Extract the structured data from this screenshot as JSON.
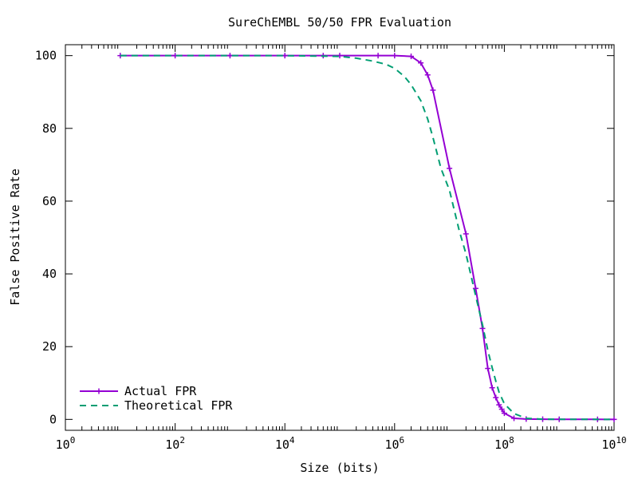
{
  "chart_data": {
    "type": "line",
    "title": "SureChEMBL 50/50 FPR Evaluation",
    "xlabel": "Size (bits)",
    "ylabel": "False Positive Rate",
    "x_scale": "log10",
    "xlim": [
      1,
      10000000000
    ],
    "ylim": [
      -3,
      103
    ],
    "x_ticks": [
      {
        "value": 1,
        "base": "10",
        "exp": "0"
      },
      {
        "value": 100,
        "base": "10",
        "exp": "2"
      },
      {
        "value": 10000,
        "base": "10",
        "exp": "4"
      },
      {
        "value": 1000000,
        "base": "10",
        "exp": "6"
      },
      {
        "value": 100000000,
        "base": "10",
        "exp": "8"
      },
      {
        "value": 10000000000,
        "base": "10",
        "exp": "10"
      }
    ],
    "y_ticks": [
      {
        "value": 0,
        "label": "0"
      },
      {
        "value": 20,
        "label": "20"
      },
      {
        "value": 40,
        "label": "40"
      },
      {
        "value": 60,
        "label": "60"
      },
      {
        "value": 80,
        "label": "80"
      },
      {
        "value": 100,
        "label": "100"
      }
    ],
    "grid": false,
    "legend_position": "bottom-left",
    "series": [
      {
        "name": "Actual FPR",
        "color": "#9400d3",
        "style": "solid-with-markers",
        "x": [
          10,
          100,
          1000,
          10000,
          50000,
          100000,
          500000,
          1000000,
          2000000,
          3000000,
          4000000,
          5000000,
          10000000,
          20000000,
          30000000,
          40000000,
          50000000,
          60000000,
          70000000,
          80000000,
          90000000,
          100000000,
          150000000,
          250000000,
          500000000,
          1000000000,
          5000000000,
          10000000000
        ],
        "y": [
          100,
          100,
          100,
          100,
          100,
          100,
          100,
          100,
          99.8,
          98,
          94.7,
          90.5,
          69,
          51,
          36,
          25,
          14,
          8.7,
          6,
          4,
          2.8,
          1.7,
          0.3,
          0.1,
          0.05,
          0.03,
          0.01,
          0
        ]
      },
      {
        "name": "Theoretical FPR",
        "color": "#009e73",
        "style": "dashed",
        "x": [
          10,
          100,
          1000,
          10000,
          100000,
          200000,
          400000,
          700000,
          1000000,
          1500000,
          2000000,
          3000000,
          4000000,
          5000000,
          7000000,
          10000000,
          15000000,
          20000000,
          30000000,
          40000000,
          50000000,
          60000000,
          70000000,
          80000000,
          100000000,
          150000000,
          250000000,
          500000000,
          1000000000,
          10000000000
        ],
        "y": [
          100,
          100,
          100,
          100,
          99.8,
          99.3,
          98.5,
          97.6,
          96.5,
          94.3,
          92,
          87.6,
          82.6,
          77.5,
          69,
          63,
          52,
          45.5,
          34,
          26,
          19,
          14.2,
          10.5,
          7.5,
          4.3,
          1.6,
          0.3,
          0.05,
          0.01,
          0
        ]
      }
    ]
  }
}
